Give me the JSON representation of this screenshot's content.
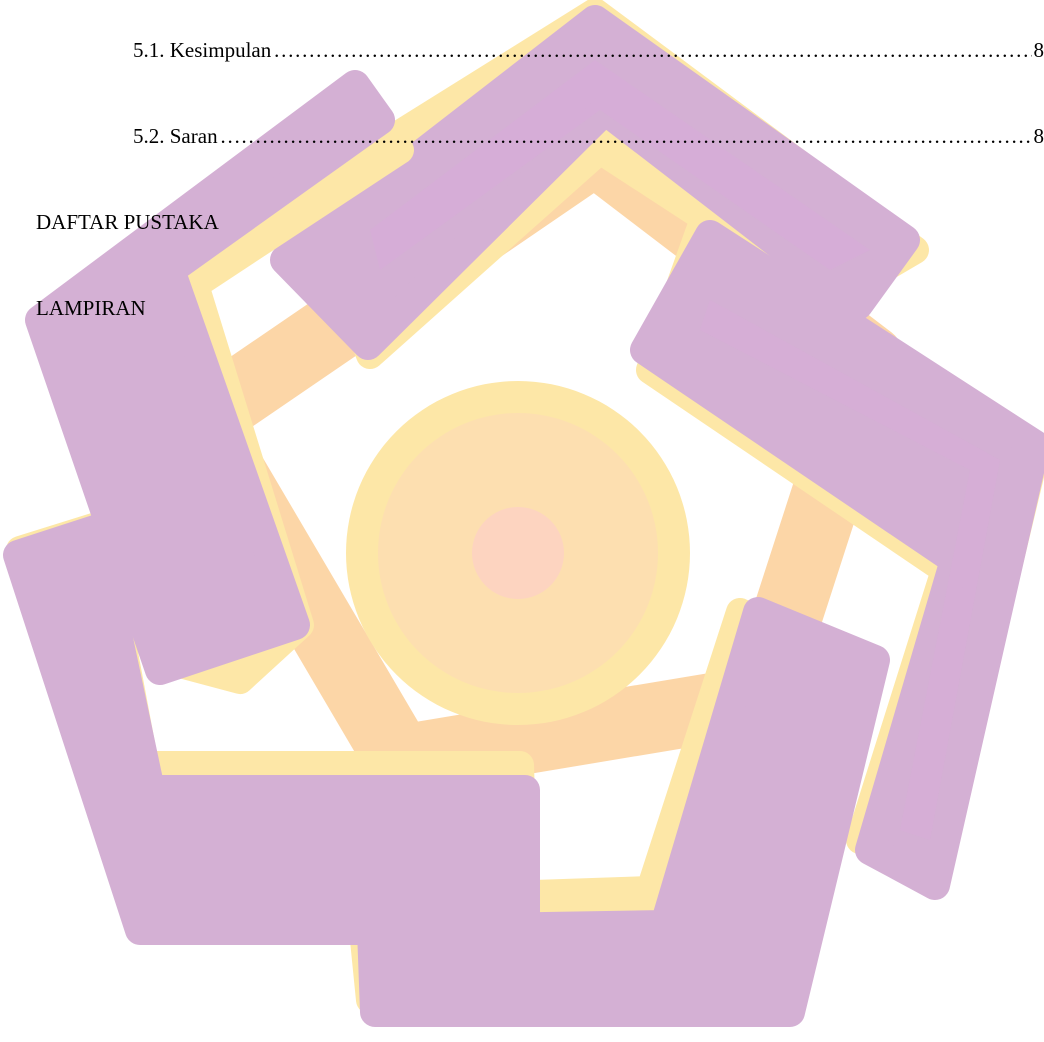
{
  "document": {
    "toc": [
      {
        "label": "5.1. Kesimpulan",
        "page": "8"
      },
      {
        "label": "5.2. Saran",
        "page": "8"
      }
    ],
    "sections": [
      {
        "label": "DAFTAR PUSTAKA"
      },
      {
        "label": "LAMPIRAN"
      }
    ]
  },
  "watermark": {
    "logo_icon": "pentagon-star-logo-icon",
    "colors": {
      "purple": "#d4b0d4",
      "purple_highlight": "#d9a8dc",
      "yellow": "#fde7a7",
      "orange": "#fcd6a7",
      "center": "#fdd4c0"
    }
  }
}
